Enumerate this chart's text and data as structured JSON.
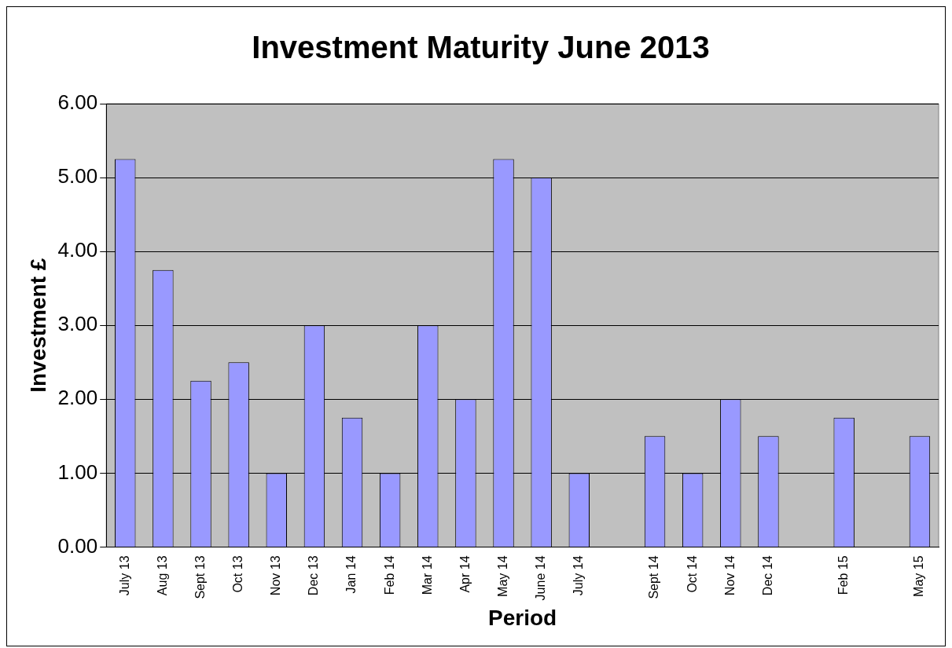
{
  "chart_data": {
    "type": "bar",
    "title": "Investment Maturity June 2013",
    "xlabel": "Period",
    "ylabel": "Investment £",
    "categories": [
      "July 13",
      "Aug 13",
      "Sept 13",
      "Oct 13",
      "Nov 13",
      "Dec 13",
      "Jan 14",
      "Feb 14",
      "Mar 14",
      "Apr 14",
      "May 14",
      "June 14",
      "July 14",
      null,
      "Sept 14",
      "Oct 14",
      "Nov 14",
      "Dec 14",
      null,
      "Feb 15",
      null,
      "May 15"
    ],
    "values": [
      5.25,
      3.75,
      2.25,
      2.5,
      1,
      3,
      1.75,
      1,
      3,
      2,
      5.25,
      5,
      1,
      null,
      1.5,
      1,
      2,
      1.5,
      null,
      1.75,
      null,
      1.5
    ],
    "color": "#9999ff",
    "ylim": [
      0,
      6
    ],
    "yticks": [
      {
        "value": 0,
        "label": "0.00"
      },
      {
        "value": 1,
        "label": "1.00"
      },
      {
        "value": 2,
        "label": "2.00"
      },
      {
        "value": 3,
        "label": "3.00"
      },
      {
        "value": 4,
        "label": "4.00"
      },
      {
        "value": 5,
        "label": "5.00"
      },
      {
        "value": 6,
        "label": "6.00"
      }
    ],
    "grid": "y",
    "legend": false
  }
}
